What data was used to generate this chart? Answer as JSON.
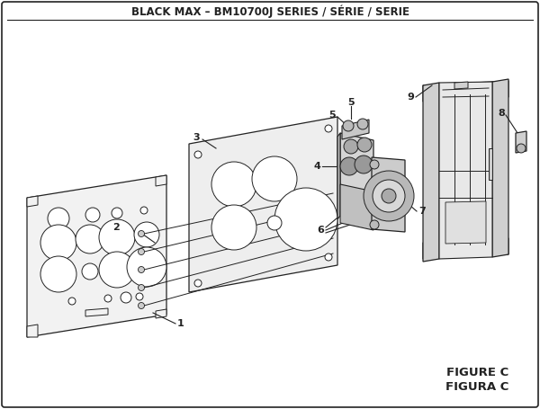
{
  "title": "BLACK MAX – BM10700J SERIES / SÉRIE / SERIE",
  "figure_label": "FIGURE C",
  "figura_label": "FIGURA C",
  "bg_color": "#ffffff",
  "line_color": "#222222",
  "title_fontsize": 8.5,
  "fig_label_fontsize": 9.5
}
